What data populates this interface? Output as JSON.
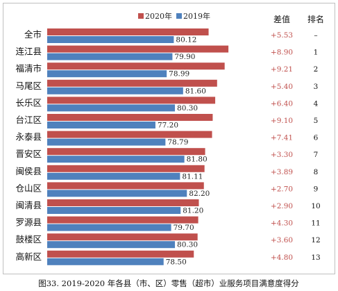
{
  "chart_data": {
    "type": "bar",
    "orientation": "horizontal",
    "caption": "图33.   2019-2020 年各县（市、区）零售（超市）业服务项目满意度得分",
    "categories": [
      "全市",
      "连江县",
      "福清市",
      "马尾区",
      "长乐区",
      "台江区",
      "永泰县",
      "晋安区",
      "闽侯县",
      "仓山区",
      "闽清县",
      "罗源县",
      "鼓楼区",
      "高新区"
    ],
    "series": [
      {
        "name": "2020年",
        "color": "#c0504d",
        "values": [
          85.65,
          88.8,
          88.2,
          87.0,
          86.7,
          86.3,
          86.2,
          85.1,
          85.0,
          84.9,
          84.1,
          84.0,
          83.9,
          83.3
        ],
        "labels": [
          "85.65",
          "88.80",
          "88.20",
          "87.00",
          "86.70",
          "86.30",
          "86.20",
          "85.10",
          "85.00",
          "84.90",
          "84.10",
          "84.00",
          "83.90",
          "83.30"
        ]
      },
      {
        "name": "2019年",
        "color": "#4f81bd",
        "values": [
          80.12,
          79.9,
          78.99,
          81.6,
          80.3,
          77.2,
          78.79,
          81.8,
          81.11,
          82.2,
          81.2,
          79.7,
          80.3,
          78.5
        ],
        "labels": [
          "80.12",
          "79.90",
          "78.99",
          "81.60",
          "80.30",
          "77.20",
          "78.79",
          "81.80",
          "81.11",
          "82.20",
          "81.20",
          "79.70",
          "80.30",
          "78.50"
        ]
      }
    ],
    "xlim": [
      60,
      90
    ],
    "legend_position": "top",
    "grid": false,
    "columns": {
      "diff_header": "差值",
      "rank_header": "排名",
      "diff": [
        "+5.53",
        "+8.90",
        "+9.21",
        "+5.40",
        "+6.40",
        "+9.10",
        "+7.41",
        "+3.30",
        "+3.89",
        "+2.70",
        "+2.90",
        "+4.30",
        "+3.60",
        "+4.80"
      ],
      "rank": [
        "–",
        "1",
        "2",
        "3",
        "4",
        "5",
        "6",
        "7",
        "8",
        "9",
        "10",
        "11",
        "12",
        "13"
      ]
    }
  }
}
